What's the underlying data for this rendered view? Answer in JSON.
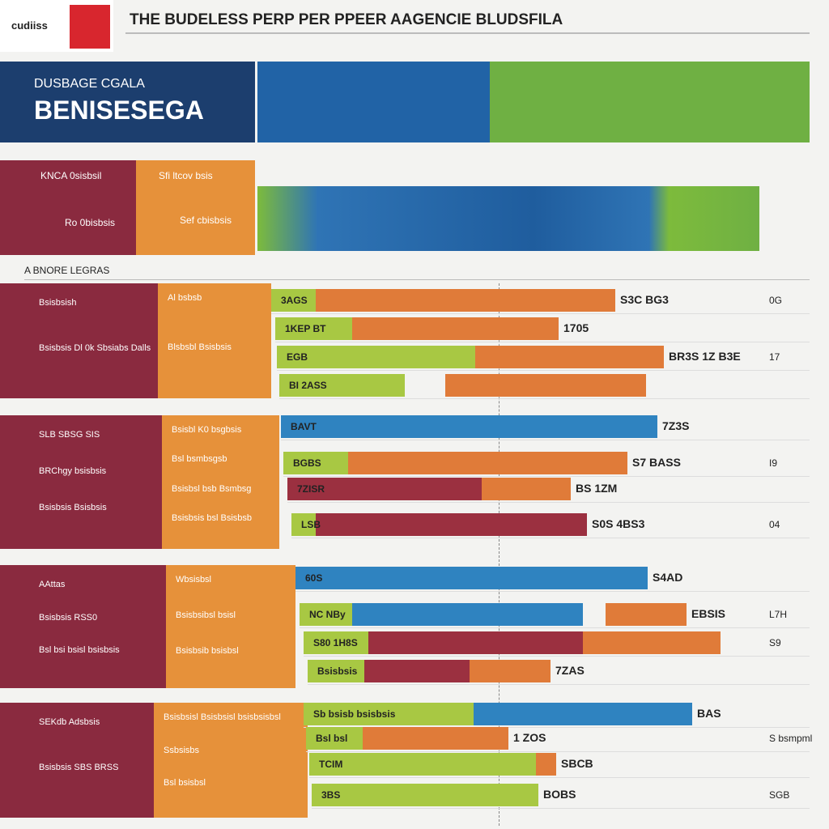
{
  "header": {
    "logo": "cudiiss",
    "title": "THE BUDELESS PERP PER PPEER AAGENCIE BLUDSFILA"
  },
  "hero": {
    "kicker": "DUSBAGE CGALA",
    "title": "BENISESEGA"
  },
  "intro": {
    "rows": [
      {
        "left": "KNCA 0sisbsil",
        "right": "Sfi ltcov bsis"
      },
      {
        "left": "Ro 0bisbsis",
        "right": "Sef cbisbsis"
      }
    ]
  },
  "section_label": "A BNORE LEGRAS",
  "groups": [
    {
      "left": [
        "Bsisbsish",
        "Bsisbsis Dl 0k Sbsiabs Dalls"
      ],
      "mid": [
        "Al bsbsb",
        "Blsbsbl Bsisbsis"
      ],
      "rows": [
        {
          "a": "3AGS",
          "b": "S3C BG3",
          "c": "0G"
        },
        {
          "a": "1KEP BT",
          "b": "1705"
        },
        {
          "a": "EGB",
          "b": "BR3S 1Z B3E",
          "c": "17"
        },
        {
          "a": "BI 2ASS"
        }
      ]
    },
    {
      "left": [
        "SLB SBSG SIS",
        "BRChgy bsisbsis",
        "Bsisbsis Bsisbsis"
      ],
      "mid": [
        "Bsisbl K0 bsgbsis",
        "Bsl bsmbsgsb",
        "Bsisbsl bsb Bsmbsg",
        "Bsisbsis bsl Bsisbsb"
      ],
      "rows": [
        {
          "a": "BAVT",
          "b": "7Z3S"
        },
        {
          "a": "BGBS",
          "b": "S7 BASS",
          "c": "I9"
        },
        {
          "a": "7ZISR",
          "b": "BS 1ZM"
        },
        {
          "a": "LSB",
          "b": "S0S 4BS3",
          "c": "04"
        }
      ]
    },
    {
      "left": [
        "AAttas",
        "Bsisbsis RSS0",
        "Bsl bsi bsisl bsisbsis"
      ],
      "mid": [
        "Wbsisbsl",
        "Bsisbsibsl bsisl",
        "Bsisbsib bsisbsl"
      ],
      "rows": [
        {
          "a": "60S",
          "b": "S4AD"
        },
        {
          "a": "NC NBy",
          "b": "EBSIS",
          "c": "L7H"
        },
        {
          "a": "S80 1H8S",
          "c": "S9"
        },
        {
          "a": "Bsisbsis",
          "b": "7ZAS"
        }
      ]
    },
    {
      "left": [
        "SEKdb Adsbsis",
        "Bsisbsis SBS BRSS"
      ],
      "mid": [
        "Bsisbsisl Bsisbsisl bsisbsisbsl",
        "Ssbsisbs",
        "Bsl bsisbsl"
      ],
      "rows": [
        {
          "a": "Sb bsisb bsisbsis",
          "b": "BAS"
        },
        {
          "a": "Bsl bsl",
          "b": "1 ZOS",
          "c": "S bsmpml"
        },
        {
          "a": "TCIM",
          "b": "SBCB"
        },
        {
          "a": "3BS",
          "b": "BOBS",
          "c": "SGB"
        }
      ]
    }
  ]
}
